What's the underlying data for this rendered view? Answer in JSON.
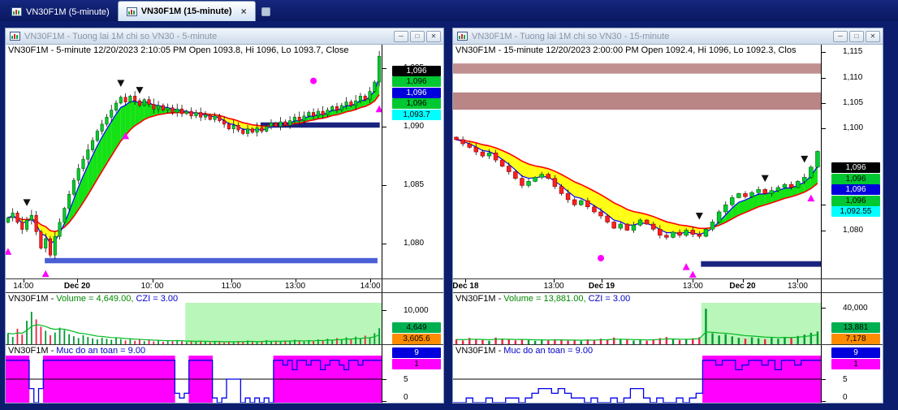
{
  "app": {
    "tabs": [
      {
        "label": "VN30F1M (5-minute)",
        "active": false
      },
      {
        "label": "VN30F1M (15-minute)",
        "active": true,
        "close_label": "×"
      }
    ],
    "window_buttons": {
      "minimize": "─",
      "maximize": "□",
      "close": "✕"
    }
  },
  "windows": [
    {
      "title": "VN30F1M - Tuong lai 1M chi so VN30 - 5-minute",
      "status_line": "VN30F1M - 5-minute 12/20/2023 2:10:05 PM Open 1093.8, Hi 1096, Lo 1093.7, Close",
      "volume_header": [
        {
          "text": "VN30F1M - ",
          "color": "#000000"
        },
        {
          "text": "Volume = 4,649.00, ",
          "color": "#008800"
        },
        {
          "text": "CZI = 3.00",
          "color": "#0000cc"
        }
      ],
      "safety_header": [
        {
          "text": "VN30F1M - ",
          "color": "#000000"
        },
        {
          "text": "Muc do an toan = 9.00",
          "color": "#0000cc"
        }
      ]
    },
    {
      "title": "VN30F1M - Tuong lai 1M chi so VN30 - 15-minute",
      "status_line": "VN30F1M - 15-minute 12/20/2023 2:00:00 PM Open 1092.4, Hi 1096, Lo 1092.3, Clos",
      "volume_header": [
        {
          "text": "VN30F1M - ",
          "color": "#000000"
        },
        {
          "text": "Volume = 13,881.00, ",
          "color": "#008800"
        },
        {
          "text": "CZI = 3.00",
          "color": "#0000cc"
        }
      ],
      "safety_header": [
        {
          "text": "VN30F1M - ",
          "color": "#000000"
        },
        {
          "text": "Muc do an toan = 9.00",
          "color": "#0000cc"
        }
      ]
    }
  ],
  "chart_data": [
    {
      "type": "candlestick",
      "title": "VN30F1M - Tuong lai 1M chi so VN30 - 5-minute",
      "timeframe": "5-minute",
      "last_bar": {
        "open": 1093.8,
        "high": 1096,
        "low": 1093.7
      },
      "ylim": [
        1077,
        1097
      ],
      "first_open": 1081.8,
      "wick": 0.5,
      "closes": [
        1082.2,
        1082.6,
        1081.8,
        1081.2,
        1082,
        1082.4,
        1081,
        1079.6,
        1080.4,
        1079,
        1080.6,
        1081.8,
        1083,
        1084.2,
        1085.4,
        1086.4,
        1087.2,
        1088,
        1088.8,
        1089.6,
        1090.2,
        1090.8,
        1091.4,
        1092,
        1092.5,
        1092.1,
        1092.6,
        1092.2,
        1091.8,
        1092.3,
        1091.9,
        1091.5,
        1091.8,
        1091.4,
        1091.6,
        1091.2,
        1091.5,
        1091.1,
        1091.3,
        1090.9,
        1091.2,
        1090.8,
        1091,
        1090.6,
        1090.9,
        1090.5,
        1090.2,
        1089.8,
        1090.1,
        1089.7,
        1089.4,
        1089.8,
        1089.5,
        1089.9,
        1089.6,
        1090,
        1090.3,
        1090,
        1090.4,
        1090.1,
        1090.5,
        1090.8,
        1090.5,
        1090.9,
        1091.2,
        1090.9,
        1091.3,
        1091,
        1091.4,
        1091.7,
        1091.4,
        1091.8,
        1092.1,
        1091.8,
        1092.2,
        1092.6,
        1092.3,
        1093,
        1093.8,
        1096
      ],
      "yticks": [
        {
          "v": 1095,
          "label": "1,095"
        },
        {
          "v": 1090,
          "label": "1,090"
        },
        {
          "v": 1085,
          "label": "1,085"
        },
        {
          "v": 1080,
          "label": "1,080"
        }
      ],
      "xticks": [
        {
          "pos": 0.047,
          "label": "14:00",
          "bold": false
        },
        {
          "pos": 0.19,
          "label": "Dec 20",
          "bold": true
        },
        {
          "pos": 0.39,
          "label": "10: 00",
          "bold": false
        },
        {
          "pos": 0.6,
          "label": "11:00",
          "bold": false
        },
        {
          "pos": 0.77,
          "label": "13:00",
          "bold": false
        },
        {
          "pos": 0.97,
          "label": "14:00",
          "bold": false
        }
      ],
      "zones": [],
      "levels": [
        {
          "from": 0.678,
          "to": 0.995,
          "lo": 1089.9,
          "hi": 1090.35,
          "color": "#1a237e"
        },
        {
          "from": 0.104,
          "to": 0.989,
          "lo": 1078.3,
          "hi": 1078.75,
          "color": "#4a5fd6"
        }
      ],
      "markers": [
        {
          "shape": "up",
          "bar": 0,
          "price": 1079.3,
          "color": "#ff00ff"
        },
        {
          "shape": "down",
          "bar": 4,
          "price": 1083.5,
          "color": "#111111"
        },
        {
          "shape": "up",
          "bar": 8,
          "price": 1077.4,
          "color": "#ff00ff"
        },
        {
          "shape": "down",
          "bar": 24,
          "price": 1093.7,
          "color": "#111111"
        },
        {
          "shape": "up",
          "bar": 25,
          "price": 1089.2,
          "color": "#ff00ff"
        },
        {
          "shape": "down",
          "bar": 28,
          "price": 1093.1,
          "color": "#111111"
        },
        {
          "shape": "circle",
          "bar": 65,
          "price": 1093.9,
          "color": "#ff00ff"
        },
        {
          "shape": "up",
          "bar": 79,
          "price": 1091.5,
          "color": "#ff00ff"
        }
      ],
      "price_chips": [
        {
          "label": "1,096",
          "bg": "#000000",
          "fg": "#ffffff"
        },
        {
          "label": "1,096",
          "bg": "#00c832",
          "fg": "#000000"
        },
        {
          "label": "1,096",
          "bg": "#0000dc",
          "fg": "#ffffff"
        },
        {
          "label": "1,096",
          "bg": "#00c832",
          "fg": "#000000"
        },
        {
          "label": "1,093.7",
          "bg": "#00ffff",
          "fg": "#000000"
        }
      ],
      "chips_top": 0.09,
      "volume": {
        "values": [
          3200,
          2100,
          4500,
          2800,
          6800,
          9400,
          7200,
          5100,
          3900,
          2600,
          3400,
          4800,
          4100,
          2900,
          2300,
          1800,
          2600,
          2100,
          1700,
          1400,
          1900,
          1600,
          1300,
          1800,
          1500,
          1100,
          1400,
          1000,
          1300,
          900,
          1200,
          800,
          1100,
          700,
          1000,
          900,
          1200,
          800,
          600,
          900,
          700,
          1000,
          800,
          600,
          900,
          700,
          500,
          800,
          600,
          900,
          700,
          1100,
          800,
          600,
          900,
          1200,
          800,
          1000,
          700,
          1100,
          900,
          1300,
          1000,
          800,
          1200,
          900,
          1400,
          1100,
          1600,
          1200,
          1800,
          1400,
          2000,
          1500,
          2200,
          1700,
          2500,
          2000,
          3200,
          4649
        ],
        "max": 12000,
        "tick": {
          "v": 10000,
          "label": "10,000"
        },
        "shade": [
          0.478,
          1.0
        ],
        "chips": [
          {
            "value": 4649,
            "label": "4,649",
            "bg": "#00b050",
            "fg": "#000000"
          },
          {
            "label": "3,605.6",
            "bg": "#ff8c00",
            "fg": "#000000"
          }
        ]
      },
      "safety": {
        "values": [
          9,
          9,
          9,
          9,
          9,
          3,
          0,
          3,
          9,
          9,
          9,
          9,
          9,
          9,
          9,
          9,
          9,
          9,
          9,
          9,
          9,
          9,
          9,
          9,
          9,
          9,
          9,
          9,
          9,
          9,
          9,
          9,
          9,
          9,
          9,
          9,
          2,
          1,
          2,
          9,
          9,
          9,
          9,
          9,
          1,
          0,
          1,
          5,
          5,
          5,
          0,
          1,
          0,
          1,
          0,
          1,
          0,
          9,
          9,
          8,
          9,
          7,
          9,
          9,
          8,
          9,
          9,
          7,
          8,
          9,
          9,
          8,
          7,
          9,
          9,
          8,
          9,
          9,
          9,
          9
        ],
        "threshold": 5,
        "ticks": [
          {
            "v": 5,
            "label": "5"
          },
          {
            "v": 0,
            "label": "0"
          }
        ],
        "chips": [
          {
            "label": "9",
            "bg": "#0000dc",
            "fg": "#ffffff"
          },
          {
            "label": "1",
            "bg": "#ff00ff",
            "fg": "#000000"
          }
        ]
      }
    },
    {
      "type": "candlestick",
      "title": "VN30F1M - Tuong lai 1M chi so VN30 - 15-minute",
      "timeframe": "15-minute",
      "last_bar": {
        "open": 1092.4,
        "high": 1096,
        "low": 1092.3
      },
      "ylim": [
        1070.5,
        1116.5
      ],
      "first_open": 1098.3,
      "wick": 0.8,
      "closes": [
        1097.8,
        1097,
        1096.3,
        1095.4,
        1094.6,
        1095.2,
        1093.8,
        1092.6,
        1091.5,
        1090.2,
        1088.8,
        1089.6,
        1090.4,
        1091,
        1090.2,
        1088.6,
        1087.2,
        1086,
        1085,
        1085.8,
        1084.6,
        1083.6,
        1082.8,
        1081.6,
        1080.4,
        1081.2,
        1080,
        1081,
        1082,
        1081.2,
        1080.2,
        1079,
        1078.6,
        1079.6,
        1079,
        1080,
        1079.2,
        1078.8,
        1080.2,
        1081.6,
        1083.6,
        1085,
        1086.4,
        1087.2,
        1086.6,
        1087.4,
        1088,
        1087.2,
        1087.8,
        1088.4,
        1089,
        1088.4,
        1089.6,
        1090.4,
        1092.4,
        1095.5
      ],
      "yticks": [
        {
          "v": 1115,
          "label": "1,115"
        },
        {
          "v": 1110,
          "label": "1,110"
        },
        {
          "v": 1105,
          "label": "1,105"
        },
        {
          "v": 1100,
          "label": "1,100"
        },
        {
          "v": 1085,
          "label": "1,085"
        },
        {
          "v": 1080,
          "label": "1,080"
        }
      ],
      "xticks": [
        {
          "pos": 0.034,
          "label": "Dec 18",
          "bold": true
        },
        {
          "pos": 0.274,
          "label": "13:00",
          "bold": false
        },
        {
          "pos": 0.404,
          "label": "Dec 19",
          "bold": true
        },
        {
          "pos": 0.652,
          "label": "13:00",
          "bold": false
        },
        {
          "pos": 0.787,
          "label": "Dec 20",
          "bold": true
        },
        {
          "pos": 0.937,
          "label": "13:00",
          "bold": false
        }
      ],
      "zones": [
        {
          "lo": 1110.8,
          "hi": 1112.8,
          "color": "#c09090"
        },
        {
          "lo": 1103.7,
          "hi": 1107.1,
          "color": "#b98585"
        }
      ],
      "levels": [
        {
          "from": 0.674,
          "to": 1.0,
          "lo": 1072.8,
          "hi": 1073.9,
          "color": "#1a237e"
        }
      ],
      "markers": [
        {
          "shape": "circle",
          "bar": 22,
          "price": 1074.5,
          "color": "#ff00ff"
        },
        {
          "shape": "up",
          "bar": 35,
          "price": 1072.8,
          "color": "#ff00ff"
        },
        {
          "shape": "up",
          "bar": 36,
          "price": 1071.3,
          "color": "#ff00ff"
        },
        {
          "shape": "down",
          "bar": 37,
          "price": 1082.8,
          "color": "#111111"
        },
        {
          "shape": "down",
          "bar": 47,
          "price": 1090.2,
          "color": "#111111"
        },
        {
          "shape": "down",
          "bar": 53,
          "price": 1094,
          "color": "#111111"
        },
        {
          "shape": "up",
          "bar": 54,
          "price": 1086.3,
          "color": "#ff00ff"
        }
      ],
      "price_chips": [
        {
          "label": "1,096",
          "bg": "#000000",
          "fg": "#ffffff"
        },
        {
          "label": "1,096",
          "bg": "#00c832",
          "fg": "#000000"
        },
        {
          "label": "1,096",
          "bg": "#0000dc",
          "fg": "#ffffff"
        },
        {
          "label": "1,096",
          "bg": "#00c832",
          "fg": "#000000"
        },
        {
          "label": "1,092.55",
          "bg": "#00ffff",
          "fg": "#000000"
        }
      ],
      "chips_top": 0.505,
      "volume": {
        "values": [
          5200,
          4100,
          6800,
          5400,
          4600,
          3800,
          7200,
          6100,
          5000,
          4200,
          5600,
          4400,
          3600,
          4800,
          4000,
          5400,
          4600,
          3800,
          4400,
          3600,
          5200,
          4400,
          6000,
          5000,
          7200,
          5800,
          4800,
          4000,
          4600,
          3800,
          5400,
          6600,
          7800,
          5600,
          4600,
          5200,
          6400,
          7600,
          38500,
          12000,
          9500,
          11000,
          8500,
          7000,
          6000,
          7500,
          6500,
          5500,
          7000,
          6000,
          8000,
          7000,
          9000,
          10500,
          12500,
          13881
        ],
        "max": 45000,
        "tick": {
          "v": 40000,
          "label": "40,000"
        },
        "shade": [
          0.675,
          1.0
        ],
        "chips": [
          {
            "value": 13881,
            "label": "13,881",
            "bg": "#00b050",
            "fg": "#000000"
          },
          {
            "label": "7,178",
            "bg": "#ff8c00",
            "fg": "#000000"
          }
        ]
      },
      "safety": {
        "values": [
          0,
          0,
          1,
          0,
          0,
          1,
          0,
          0,
          1,
          1,
          0,
          1,
          2,
          3,
          3,
          2,
          3,
          2,
          1,
          1,
          0,
          1,
          0,
          0,
          1,
          0,
          1,
          3,
          3,
          1,
          0,
          1,
          0,
          0,
          1,
          0,
          1,
          2,
          9,
          9,
          8,
          9,
          9,
          7,
          8,
          9,
          9,
          8,
          9,
          7,
          9,
          9,
          8,
          9,
          9,
          9
        ],
        "threshold": 5,
        "ticks": [
          {
            "v": 5,
            "label": "5"
          },
          {
            "v": 0,
            "label": "0"
          }
        ],
        "chips": [
          {
            "label": "9",
            "bg": "#0000dc",
            "fg": "#ffffff"
          },
          {
            "label": "1",
            "bg": "#ff00ff",
            "fg": "#000000"
          }
        ]
      }
    }
  ]
}
